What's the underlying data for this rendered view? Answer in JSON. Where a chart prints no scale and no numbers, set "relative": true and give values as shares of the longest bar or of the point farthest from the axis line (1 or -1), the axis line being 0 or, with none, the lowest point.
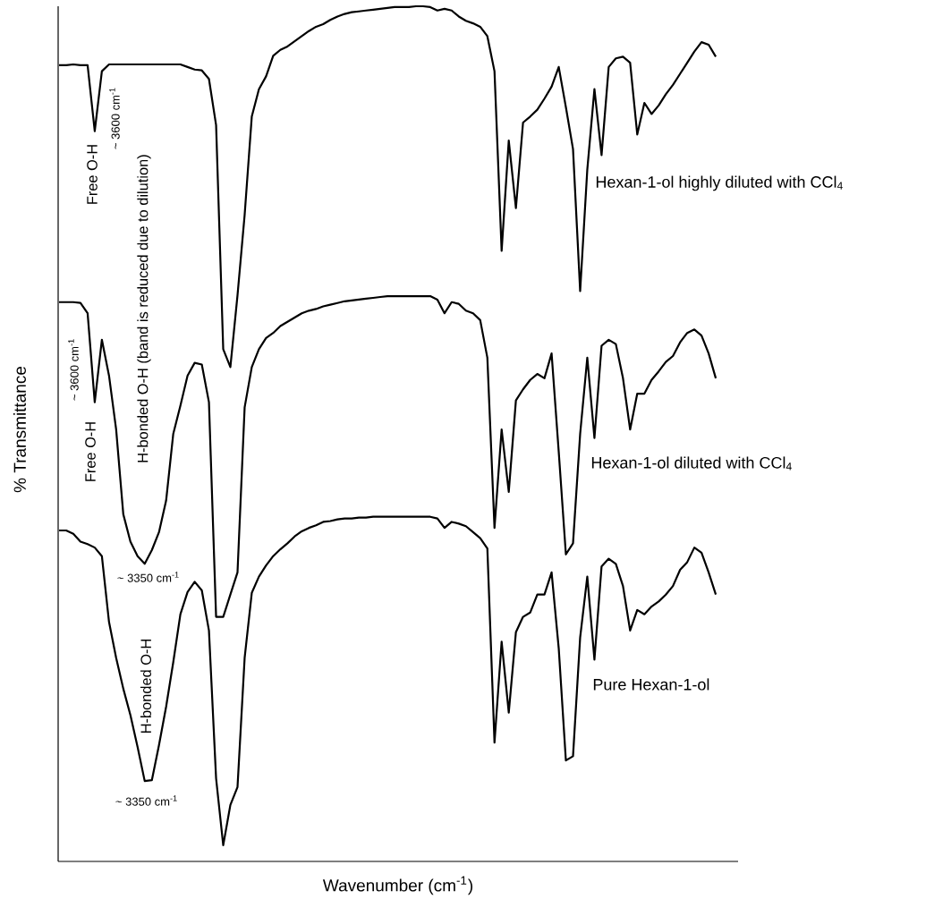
{
  "chart_data": {
    "type": "line",
    "relative": true,
    "xlabel": "Wavenumber (cm$^{-1}$)",
    "ylabel": "% Transmittance",
    "categories": [
      null,
      null,
      null,
      null,
      null,
      null,
      null,
      null,
      null,
      null,
      null,
      null,
      null,
      null,
      null,
      null,
      null,
      null,
      null,
      null,
      null,
      null,
      null,
      null,
      null,
      null,
      null,
      null,
      null,
      null,
      null,
      null,
      null,
      null,
      null,
      null,
      null,
      null,
      null,
      null,
      null,
      null,
      null,
      null,
      null,
      null,
      null,
      null,
      null,
      null,
      null,
      null,
      null,
      null,
      null,
      null,
      null,
      null,
      null,
      null,
      null,
      null,
      null,
      null,
      null,
      null,
      null,
      null,
      null,
      null,
      null,
      null,
      null,
      null,
      null,
      null,
      null,
      null,
      null,
      null,
      null,
      null,
      null,
      null,
      null,
      null,
      null,
      null,
      null,
      null,
      null,
      null,
      null
    ],
    "series": [
      {
        "name": "Hexan-1-ol highly diluted with CCl$_{4}$",
        "color": "#000000",
        "values": [
          0.931,
          0.931,
          0.932,
          0.931,
          0.931,
          0.854,
          0.924,
          0.932,
          0.932,
          0.932,
          0.932,
          0.932,
          0.932,
          0.932,
          0.932,
          0.932,
          0.932,
          0.932,
          0.929,
          0.926,
          0.925,
          0.915,
          0.861,
          0.599,
          0.578,
          0.662,
          0.756,
          0.871,
          0.903,
          0.918,
          0.942,
          0.949,
          0.953,
          0.959,
          0.965,
          0.971,
          0.976,
          0.979,
          0.984,
          0.988,
          0.991,
          0.993,
          0.994,
          0.995,
          0.996,
          0.997,
          0.998,
          0.999,
          0.999,
          0.999,
          1.0,
          1.0,
          0.999,
          0.995,
          0.997,
          0.995,
          0.988,
          0.983,
          0.98,
          0.976,
          0.965,
          0.924,
          0.714,
          0.843,
          0.764,
          0.864,
          0.871,
          0.879,
          0.892,
          0.906,
          0.929,
          0.882,
          0.833,
          0.667,
          0.809,
          0.903,
          0.826,
          0.929,
          0.939,
          0.941,
          0.934,
          0.85,
          0.887,
          0.874,
          0.884,
          0.897,
          0.908,
          0.921,
          0.934,
          0.947,
          0.958,
          0.955,
          0.941
        ]
      },
      {
        "name": "Hexan-1-ol diluted with CCl$_{4}$",
        "color": "#000000",
        "values": [
          0.654,
          0.654,
          0.654,
          0.653,
          0.641,
          0.537,
          0.61,
          0.568,
          0.505,
          0.406,
          0.374,
          0.357,
          0.348,
          0.364,
          0.385,
          0.422,
          0.5,
          0.533,
          0.568,
          0.583,
          0.581,
          0.537,
          0.286,
          0.286,
          0.312,
          0.338,
          0.531,
          0.578,
          0.599,
          0.612,
          0.618,
          0.626,
          0.631,
          0.636,
          0.641,
          0.644,
          0.646,
          0.649,
          0.651,
          0.653,
          0.655,
          0.656,
          0.657,
          0.658,
          0.659,
          0.66,
          0.661,
          0.661,
          0.661,
          0.661,
          0.661,
          0.661,
          0.661,
          0.657,
          0.641,
          0.654,
          0.652,
          0.644,
          0.641,
          0.633,
          0.589,
          0.39,
          0.505,
          0.432,
          0.539,
          0.552,
          0.563,
          0.57,
          0.565,
          0.594,
          0.479,
          0.359,
          0.372,
          0.5,
          0.589,
          0.495,
          0.603,
          0.61,
          0.605,
          0.565,
          0.505,
          0.547,
          0.547,
          0.563,
          0.573,
          0.584,
          0.591,
          0.607,
          0.618,
          0.622,
          0.615,
          0.594,
          0.565
        ]
      },
      {
        "name": "Pure Hexan-1-ol",
        "color": "#000000",
        "values": [
          0.387,
          0.387,
          0.383,
          0.374,
          0.371,
          0.367,
          0.357,
          0.28,
          0.238,
          0.202,
          0.171,
          0.134,
          0.094,
          0.095,
          0.136,
          0.181,
          0.233,
          0.289,
          0.315,
          0.327,
          0.317,
          0.27,
          0.097,
          0.019,
          0.066,
          0.087,
          0.238,
          0.314,
          0.333,
          0.346,
          0.357,
          0.365,
          0.372,
          0.38,
          0.386,
          0.39,
          0.393,
          0.397,
          0.398,
          0.4,
          0.401,
          0.401,
          0.402,
          0.402,
          0.403,
          0.403,
          0.403,
          0.403,
          0.403,
          0.403,
          0.403,
          0.403,
          0.403,
          0.401,
          0.39,
          0.397,
          0.395,
          0.392,
          0.385,
          0.378,
          0.366,
          0.139,
          0.257,
          0.174,
          0.268,
          0.286,
          0.291,
          0.312,
          0.312,
          0.338,
          0.249,
          0.118,
          0.123,
          0.262,
          0.333,
          0.236,
          0.345,
          0.354,
          0.348,
          0.322,
          0.27,
          0.294,
          0.289,
          0.298,
          0.304,
          0.312,
          0.322,
          0.341,
          0.35,
          0.367,
          0.361,
          0.338,
          0.312
        ]
      }
    ],
    "annotations": [
      "Free O-H",
      "~ 3600 cm$^{-1}$",
      "H-bonded O-H (band is reduced due to dilution)",
      "~ 3600 cm$^{-1}$",
      "Free O-H",
      "~ 3350 cm$^{-1}$",
      "H-bonded O-H",
      "~ 3350 cm$^{-1}$"
    ]
  }
}
